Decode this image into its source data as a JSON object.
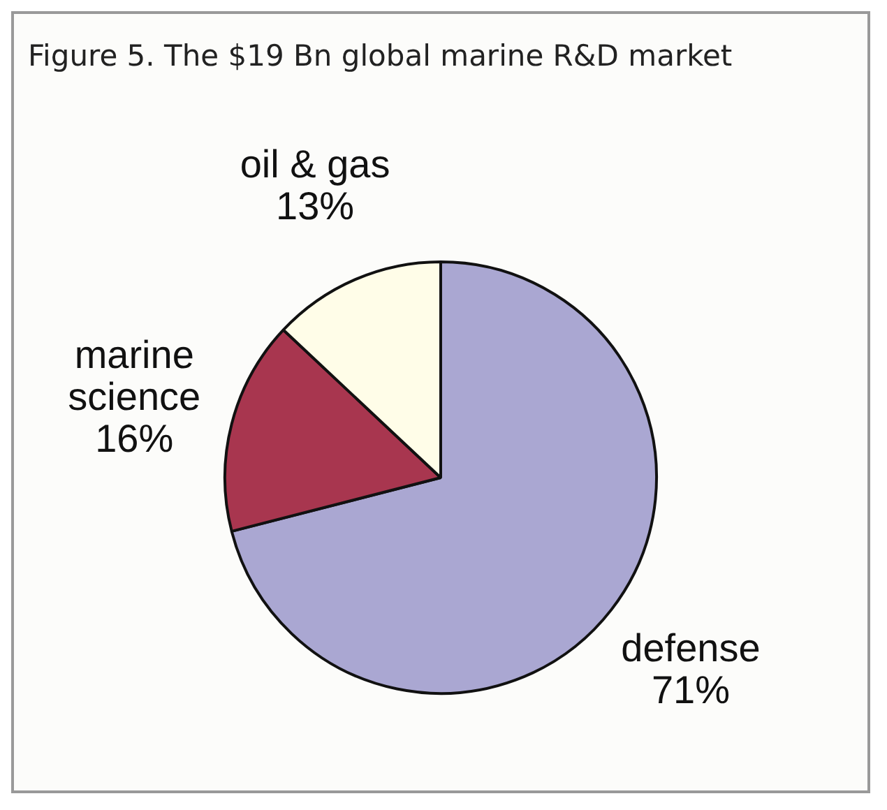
{
  "chart_data": {
    "type": "pie",
    "title": "Figure 5. The $19 Bn global marine R&D market",
    "categories": [
      "defense",
      "marine science",
      "oil & gas"
    ],
    "values": [
      71,
      16,
      13
    ],
    "colors": [
      "#aaa7d2",
      "#a8364f",
      "#fffde8"
    ],
    "value_labels": [
      "71%",
      "16%",
      "13%"
    ],
    "legend": false
  }
}
